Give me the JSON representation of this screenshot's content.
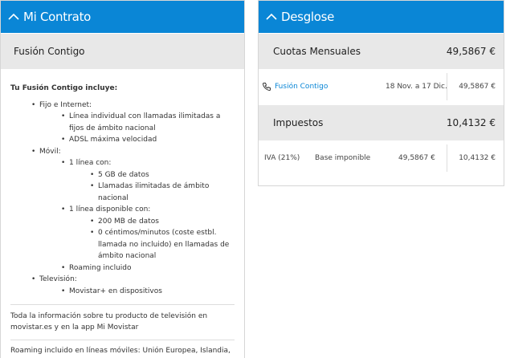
{
  "contrato": {
    "title": "Mi Contrato",
    "plan_name": "Fusión Contigo",
    "includes_title": "Tu Fusión Contigo incluye:",
    "sections": [
      {
        "label": "Fijo e Internet:",
        "items": [
          {
            "label": "Línea individual con llamadas ilimitadas a fijos de ámbito nacional"
          },
          {
            "label": "ADSL máxima velocidad"
          }
        ]
      },
      {
        "label": "Móvil:",
        "items": [
          {
            "label": "1 línea con:",
            "items": [
              "5 GB de datos",
              "Llamadas ilimitadas de ámbito nacional"
            ]
          },
          {
            "label": "1 línea disponible con:",
            "items": [
              "200 MB de datos",
              "0 céntimos/minutos (coste estbl. llamada no incluido) en llamadas de ámbito nacional"
            ]
          },
          {
            "label": "Roaming incluido"
          }
        ]
      },
      {
        "label": "Televisión:",
        "items": [
          {
            "label": "Movistar+ en dispositivos"
          }
        ]
      }
    ],
    "notes": [
      "Toda la información sobre tu producto de televisión en movistar.es y en la app Mi Movistar",
      "Roaming incluido en líneas móviles: Unión Europea, Islandia, Liechtenstein y Noruega (excepto llamadas internacionales)"
    ]
  },
  "desglose": {
    "title": "Desglose",
    "cuotas": {
      "label": "Cuotas Mensuales",
      "total": "49,5867 €",
      "row": {
        "name": "Fusión Contigo",
        "period": "18 Nov. a 17 Dic.",
        "amount": "49,5867 €"
      }
    },
    "impuestos": {
      "label": "Impuestos",
      "total": "10,4132 €",
      "row": {
        "name": "IVA (21%)",
        "base_label": "Base imponible",
        "base_amount": "49,5867 €",
        "amount": "10,4132 €"
      }
    }
  },
  "icons": {
    "collapse": "chevron-up-icon",
    "phone": "phone-icon"
  },
  "colors": {
    "header": "#0a86d6",
    "section": "#e8e8e8",
    "link": "#0a86d6"
  }
}
